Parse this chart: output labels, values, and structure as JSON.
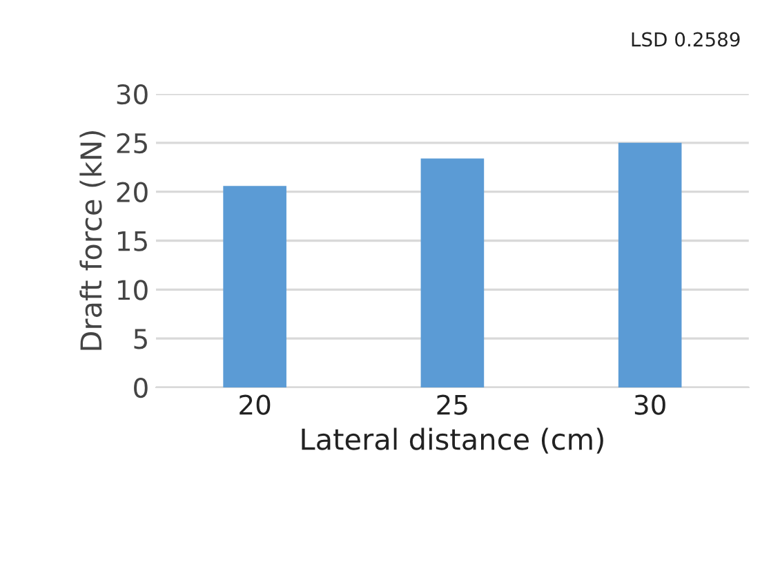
{
  "chart_data": {
    "type": "bar",
    "xlabel": "Lateral distance (cm)",
    "ylabel": "Draft force (kN)",
    "categories": [
      "20",
      "25",
      "30"
    ],
    "values": [
      20.6,
      23.4,
      25.0
    ],
    "color": "#5b9bd5",
    "ylim": [
      0,
      30
    ],
    "yticks": [
      0,
      5,
      10,
      15,
      20,
      25,
      30
    ],
    "grid": "y",
    "annotations": [
      "LSD 0.2589"
    ]
  }
}
